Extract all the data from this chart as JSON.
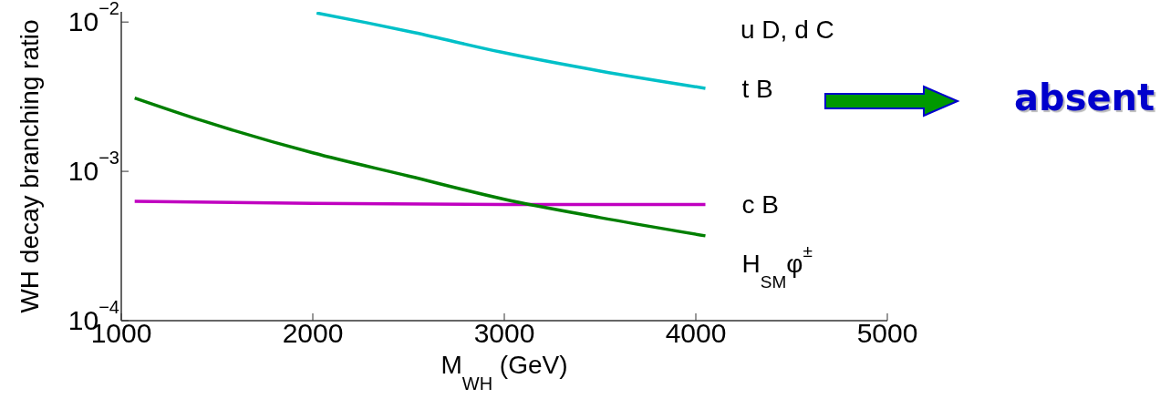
{
  "chart_data": {
    "type": "line",
    "xlabel": "M$_{WH}$  (GeV)",
    "ylabel": "WH decay branching ratio",
    "log": "y",
    "xlim": [
      1000,
      5000
    ],
    "xticks": [
      1000,
      2000,
      3000,
      4000,
      5000
    ],
    "ylim": [
      0.0001,
      0.0117
    ],
    "yticks": [
      {
        "value": 0.0001,
        "label": "10$^{−4}$"
      },
      {
        "value": 0.001,
        "label": "10$^{−3}$"
      },
      {
        "value": 0.01,
        "label": "10$^{−2}$"
      }
    ],
    "marker": "none",
    "line_style": "solid",
    "annotations": [
      "u D, d C",
      "absent"
    ],
    "series": [
      {
        "name": "t B",
        "color": "#00c0c8",
        "x": [
          2020,
          2280,
          2530,
          2980,
          3500,
          4050
        ],
        "values": [
          0.0115,
          0.0099,
          0.0085,
          0.0063,
          0.0047,
          0.0036
        ]
      },
      {
        "name": "c B",
        "color": "#c000c0",
        "x": [
          1070,
          2000,
          3000,
          4050
        ],
        "values": [
          0.00063,
          0.00061,
          0.0006,
          0.0006
        ]
      },
      {
        "name": "H$_{SM}$φ$^{±}$",
        "color": "#007f00",
        "x": [
          1070,
          1430,
          2000,
          2500,
          3000,
          3500,
          4050
        ],
        "values": [
          0.0031,
          0.00217,
          0.00133,
          0.00093,
          0.00065,
          0.00049,
          0.00037
        ]
      }
    ]
  }
}
